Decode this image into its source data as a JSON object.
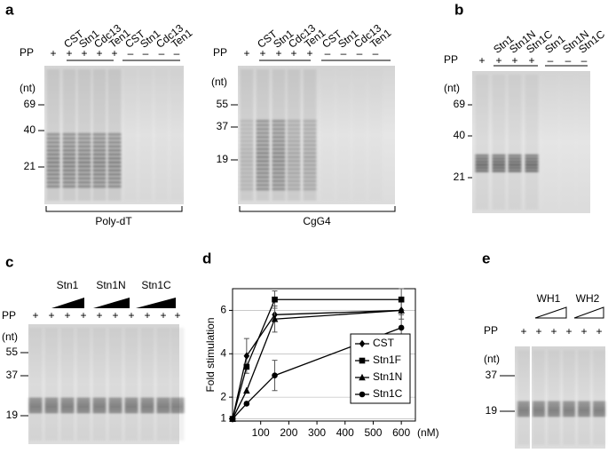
{
  "panels": {
    "a": {
      "label": "a",
      "gel1": {
        "pp_label": "PP",
        "lanes": [
          "CST",
          "Stn1",
          "Cdc13",
          "Ten1",
          "CST",
          "Stn1",
          "Cdc13",
          "Ten1"
        ],
        "pp": [
          "+",
          "+",
          "+",
          "+",
          "+",
          "–",
          "–",
          "–",
          "–"
        ],
        "size_unit": "(nt)",
        "markers": [
          "69",
          "40",
          "21"
        ],
        "substrate": "Poly-dT"
      },
      "gel2": {
        "pp_label": "PP",
        "lanes": [
          "CST",
          "Stn1",
          "Cdc13",
          "Ten1",
          "CST",
          "Stn1",
          "Cdc13",
          "Ten1"
        ],
        "pp": [
          "+",
          "+",
          "+",
          "+",
          "+",
          "–",
          "–",
          "–",
          "–"
        ],
        "size_unit": "(nt)",
        "markers": [
          "55",
          "37",
          "19"
        ],
        "substrate": "CgG4"
      }
    },
    "b": {
      "label": "b",
      "pp_label": "PP",
      "lanes": [
        "Stn1",
        "Stn1N",
        "Stn1C",
        "Stn1",
        "Stn1N",
        "Stn1C"
      ],
      "pp": [
        "+",
        "+",
        "+",
        "+",
        "–",
        "–",
        "–"
      ],
      "size_unit": "(nt)",
      "markers": [
        "69",
        "40",
        "21"
      ]
    },
    "c": {
      "label": "c",
      "pp_label": "PP",
      "proteins": [
        "Stn1",
        "Stn1N",
        "Stn1C"
      ],
      "pp": [
        "+",
        "+",
        "+",
        "+",
        "+",
        "+",
        "+",
        "+",
        "+",
        "+"
      ],
      "size_unit": "(nt)",
      "markers": [
        "55",
        "37",
        "19"
      ]
    },
    "d": {
      "label": "d"
    },
    "e": {
      "label": "e",
      "pp_label": "PP",
      "proteins": [
        "WH1",
        "WH2"
      ],
      "pp": [
        "+",
        "+",
        "+",
        "+",
        "+",
        "+"
      ],
      "size_unit": "(nt)",
      "markers": [
        "37",
        "19"
      ]
    }
  },
  "chart_data": {
    "type": "line",
    "y_label": "Fold stimulation",
    "x_unit": "(nM)",
    "x": [
      0,
      50,
      150,
      600
    ],
    "series": [
      {
        "name": "CST",
        "color": "#000000",
        "marker": "diamond",
        "values": [
          1,
          3.9,
          5.8,
          6.0
        ],
        "errors": [
          null,
          0.8,
          null,
          0.4
        ]
      },
      {
        "name": "Stn1F",
        "color": "#000000",
        "marker": "square",
        "values": [
          1,
          3.4,
          6.5,
          6.5
        ],
        "errors": [
          null,
          null,
          0.4,
          0.5
        ]
      },
      {
        "name": "Stn1N",
        "color": "#000000",
        "marker": "triangle",
        "values": [
          1,
          2.3,
          5.6,
          6.0
        ],
        "errors": [
          null,
          null,
          0.6,
          null
        ]
      },
      {
        "name": "Stn1C",
        "color": "#000000",
        "marker": "circle",
        "values": [
          1,
          1.7,
          3.0,
          5.2
        ],
        "errors": [
          null,
          null,
          0.7,
          0.6
        ]
      }
    ],
    "xlim": [
      0,
      650
    ],
    "xticks": [
      100,
      200,
      300,
      400,
      500,
      600
    ],
    "ylim": [
      0.9,
      7
    ],
    "yticks": [
      1,
      2,
      4,
      6
    ],
    "grid": true,
    "legend": "lower right"
  }
}
